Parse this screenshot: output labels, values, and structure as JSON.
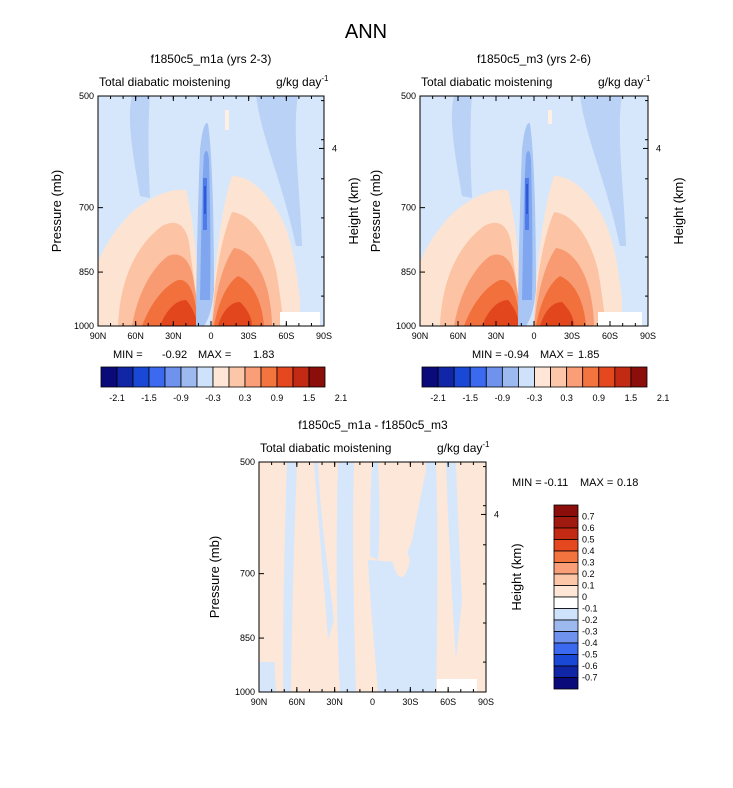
{
  "figure_title": "ANN",
  "colors": {
    "scale14": [
      "#0a0a7a",
      "#1126a6",
      "#1a48d6",
      "#3b6af0",
      "#6e92ee",
      "#9dbaf0",
      "#cfe2fb",
      "#ffe6d6",
      "#fcc6a8",
      "#f99e76",
      "#f3743f",
      "#e5481f",
      "#c22a14",
      "#8b0e0b"
    ],
    "scale16": [
      "#0a0a7a",
      "#1126a6",
      "#1a48d6",
      "#3b6af0",
      "#6e92ee",
      "#9dbaf0",
      "#cfe2fb",
      "#ffffff",
      "#ffe6d6",
      "#fcc6a8",
      "#f99e76",
      "#f3743f",
      "#e5481f",
      "#c22a14",
      "#a11a10",
      "#8b0e0b"
    ],
    "background_field": "#d6e7fb",
    "diff_positive": "#fde7d9",
    "diff_negative": "#d6e7fb"
  },
  "chart_data": [
    {
      "type": "heatmap",
      "title": "f1850c5_m1a (yrs 2-3)",
      "left_string": "Total diabatic moistening",
      "units": "g/kg day",
      "units_exp": "-1",
      "ylabel": "Pressure (mb)",
      "ylabel_right": "Height (km)",
      "x_ticks": [
        "90N",
        "60N",
        "30N",
        "0",
        "30S",
        "60S",
        "90S"
      ],
      "y_ticks": [
        "500",
        "700",
        "850",
        "1000"
      ],
      "y_tick_values": [
        500,
        700,
        850,
        1000
      ],
      "right_ticks": [
        "4"
      ],
      "min_label": "MIN =",
      "min": "-0.92",
      "max_label": "MAX =",
      "max": "1.83",
      "colorbar_labels": [
        "-2.1",
        "-1.5",
        "-0.9",
        "-0.3",
        "0.3",
        "0.9",
        "1.5",
        "2.1"
      ]
    },
    {
      "type": "heatmap",
      "title": "f1850c5_m3 (yrs 2-6)",
      "left_string": "Total diabatic moistening",
      "units": "g/kg day",
      "units_exp": "-1",
      "ylabel": "Pressure (mb)",
      "ylabel_right": "Height (km)",
      "x_ticks": [
        "90N",
        "60N",
        "30N",
        "0",
        "30S",
        "60S",
        "90S"
      ],
      "y_ticks": [
        "500",
        "700",
        "850",
        "1000"
      ],
      "y_tick_values": [
        500,
        700,
        850,
        1000
      ],
      "right_ticks": [
        "4"
      ],
      "min_label": "MIN =",
      "min": "-0.94",
      "max_label": "MAX =",
      "max": "1.85",
      "colorbar_labels": [
        "-2.1",
        "-1.5",
        "-0.9",
        "-0.3",
        "0.3",
        "0.9",
        "1.5",
        "2.1"
      ]
    },
    {
      "type": "heatmap",
      "title": "f1850c5_m1a - f1850c5_m3",
      "left_string": "Total diabatic moistening",
      "units": "g/kg day",
      "units_exp": "-1",
      "ylabel": "Pressure (mb)",
      "ylabel_right": "Height (km)",
      "x_ticks": [
        "90N",
        "60N",
        "30N",
        "0",
        "30S",
        "60S",
        "90S"
      ],
      "y_ticks": [
        "500",
        "700",
        "850",
        "1000"
      ],
      "y_tick_values": [
        500,
        700,
        850,
        1000
      ],
      "right_ticks": [
        "4"
      ],
      "min_label": "MIN =",
      "min": "-0.11",
      "max_label": "MAX =",
      "max": "0.18",
      "colorbar_labels": [
        "0.7",
        "0.6",
        "0.5",
        "0.4",
        "0.3",
        "0.2",
        "0.1",
        "0",
        "-0.1",
        "-0.2",
        "-0.3",
        "-0.4",
        "-0.5",
        "-0.6",
        "-0.7"
      ]
    }
  ]
}
